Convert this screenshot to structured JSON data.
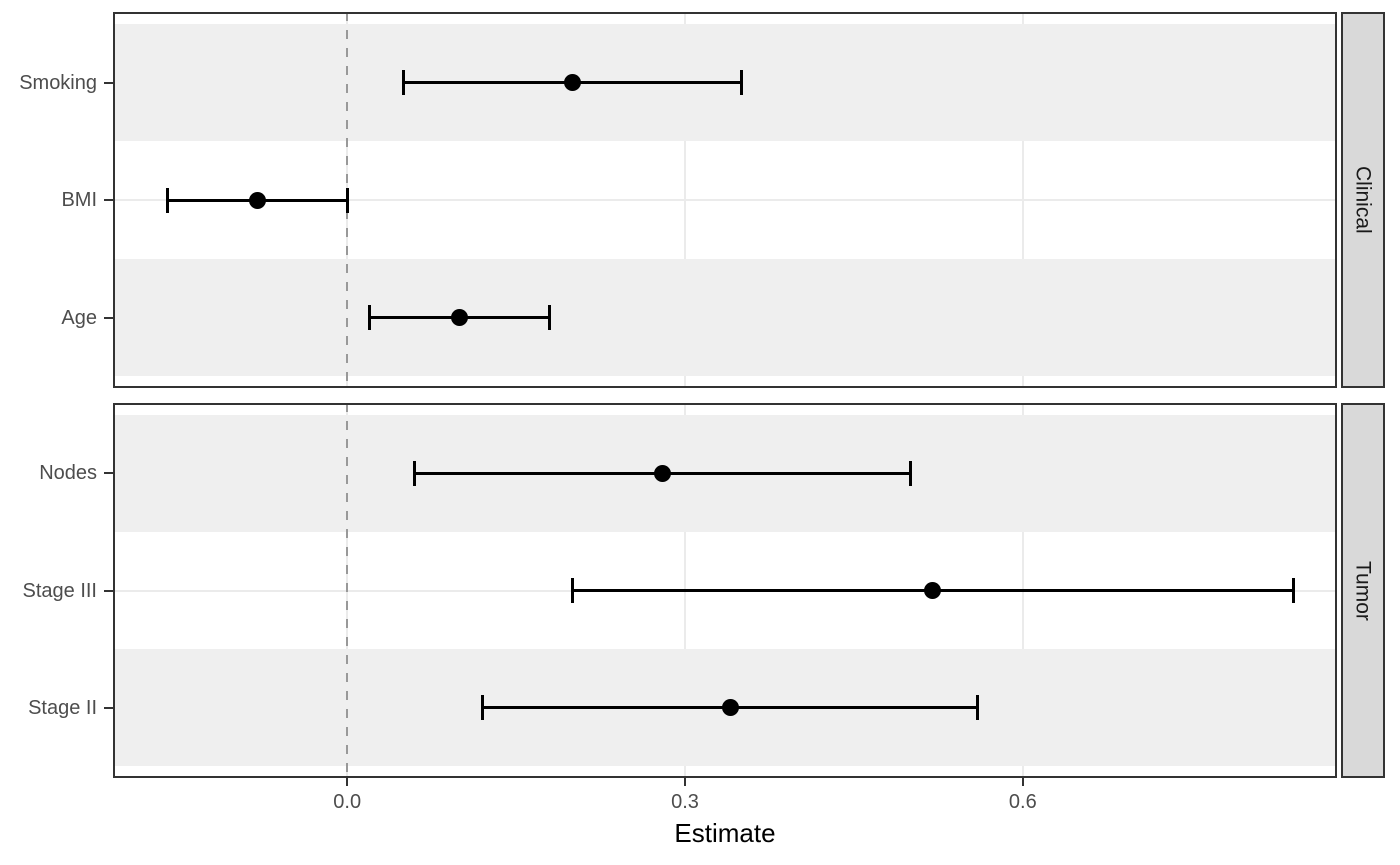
{
  "chart_data": {
    "type": "scatter",
    "subtype": "forest-plot-pointrange",
    "xlabel": "Estimate",
    "xlim": [
      -0.208,
      0.879
    ],
    "x_ticks": [
      {
        "value": 0.0,
        "label": "0.0"
      },
      {
        "value": 0.3,
        "label": "0.3"
      },
      {
        "value": 0.6,
        "label": "0.6"
      }
    ],
    "reference_line_x": 0,
    "grid": "major-only",
    "facet_strip_position": "right",
    "facets": [
      {
        "label": "Clinical",
        "rows": [
          {
            "label": "Smoking",
            "estimate": 0.2,
            "ci_low": 0.05,
            "ci_high": 0.35
          },
          {
            "label": "BMI",
            "estimate": -0.08,
            "ci_low": -0.16,
            "ci_high": 0.0
          },
          {
            "label": "Age",
            "estimate": 0.1,
            "ci_low": 0.02,
            "ci_high": 0.18
          }
        ]
      },
      {
        "label": "Tumor",
        "rows": [
          {
            "label": "Nodes",
            "estimate": 0.28,
            "ci_low": 0.06,
            "ci_high": 0.5
          },
          {
            "label": "Stage III",
            "estimate": 0.52,
            "ci_low": 0.2,
            "ci_high": 0.84
          },
          {
            "label": "Stage II",
            "estimate": 0.34,
            "ci_low": 0.12,
            "ci_high": 0.56
          }
        ]
      }
    ],
    "colors": {
      "point": "#000000",
      "error_bar": "#000000",
      "row_stripe": "#EFEFEF",
      "gridline": "#EBEBEB",
      "panel_border": "#333333",
      "strip_fill": "#D9D9D9",
      "strip_text": "#1A1A1A",
      "axis_text": "#4D4D4D",
      "axis_title": "#000000",
      "reference_line": "#999999",
      "background": "#FFFFFF"
    }
  }
}
